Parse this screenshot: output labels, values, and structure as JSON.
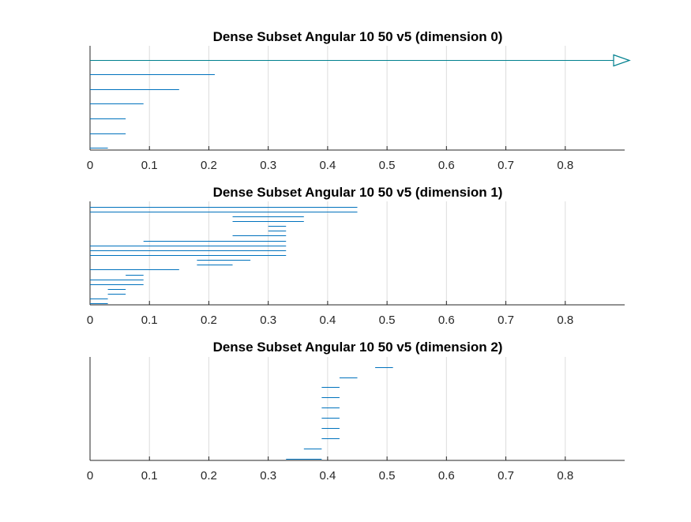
{
  "chart_data": [
    {
      "type": "barcode",
      "title": "Dense Subset Angular 10 50 v5 (dimension 0)",
      "xlim": [
        0,
        0.9
      ],
      "xticks": [
        0,
        0.1,
        0.2,
        0.3,
        0.4,
        0.5,
        0.6,
        0.7,
        0.8
      ],
      "xtick_labels": [
        "0",
        "0.1",
        "0.2",
        "0.3",
        "0.4",
        "0.5",
        "0.6",
        "0.7",
        "0.8"
      ],
      "grid": true,
      "bar_color": "#0072bd",
      "infinite_color": "#00808f",
      "bars": [
        {
          "birth": 0,
          "death": null
        },
        {
          "birth": 0,
          "death": 0.21
        },
        {
          "birth": 0,
          "death": 0.15
        },
        {
          "birth": 0,
          "death": 0.09
        },
        {
          "birth": 0,
          "death": 0.06
        },
        {
          "birth": 0,
          "death": 0.06
        },
        {
          "birth": 0,
          "death": 0.03
        }
      ]
    },
    {
      "type": "barcode",
      "title": "Dense Subset Angular 10 50 v5 (dimension 1)",
      "xlim": [
        0,
        0.9
      ],
      "xticks": [
        0,
        0.1,
        0.2,
        0.3,
        0.4,
        0.5,
        0.6,
        0.7,
        0.8
      ],
      "xtick_labels": [
        "0",
        "0.1",
        "0.2",
        "0.3",
        "0.4",
        "0.5",
        "0.6",
        "0.7",
        "0.8"
      ],
      "grid": true,
      "bar_color": "#0072bd",
      "bars": [
        {
          "birth": 0,
          "death": 0.45
        },
        {
          "birth": 0,
          "death": 0.45
        },
        {
          "birth": 0.24,
          "death": 0.36
        },
        {
          "birth": 0.24,
          "death": 0.36
        },
        {
          "birth": 0.3,
          "death": 0.33
        },
        {
          "birth": 0.3,
          "death": 0.33
        },
        {
          "birth": 0.24,
          "death": 0.33
        },
        {
          "birth": 0.09,
          "death": 0.33
        },
        {
          "birth": 0,
          "death": 0.33
        },
        {
          "birth": 0,
          "death": 0.33
        },
        {
          "birth": 0,
          "death": 0.33
        },
        {
          "birth": 0.18,
          "death": 0.27
        },
        {
          "birth": 0.18,
          "death": 0.24
        },
        {
          "birth": 0,
          "death": 0.15
        },
        {
          "birth": 0.06,
          "death": 0.09
        },
        {
          "birth": 0,
          "death": 0.09
        },
        {
          "birth": 0,
          "death": 0.09
        },
        {
          "birth": 0.03,
          "death": 0.06
        },
        {
          "birth": 0.03,
          "death": 0.06
        },
        {
          "birth": 0,
          "death": 0.03
        },
        {
          "birth": 0,
          "death": 0.03
        }
      ]
    },
    {
      "type": "barcode",
      "title": "Dense Subset Angular 10 50 v5 (dimension 2)",
      "xlim": [
        0,
        0.9
      ],
      "xticks": [
        0,
        0.1,
        0.2,
        0.3,
        0.4,
        0.5,
        0.6,
        0.7,
        0.8
      ],
      "xtick_labels": [
        "0",
        "0.1",
        "0.2",
        "0.3",
        "0.4",
        "0.5",
        "0.6",
        "0.7",
        "0.8"
      ],
      "grid": true,
      "bar_color": "#0072bd",
      "bars": [
        {
          "birth": 0.48,
          "death": 0.51
        },
        {
          "birth": 0.42,
          "death": 0.45
        },
        {
          "birth": 0.39,
          "death": 0.42
        },
        {
          "birth": 0.39,
          "death": 0.42
        },
        {
          "birth": 0.39,
          "death": 0.42
        },
        {
          "birth": 0.39,
          "death": 0.42
        },
        {
          "birth": 0.39,
          "death": 0.42
        },
        {
          "birth": 0.39,
          "death": 0.42
        },
        {
          "birth": 0.36,
          "death": 0.39
        },
        {
          "birth": 0.33,
          "death": 0.39
        }
      ]
    }
  ]
}
